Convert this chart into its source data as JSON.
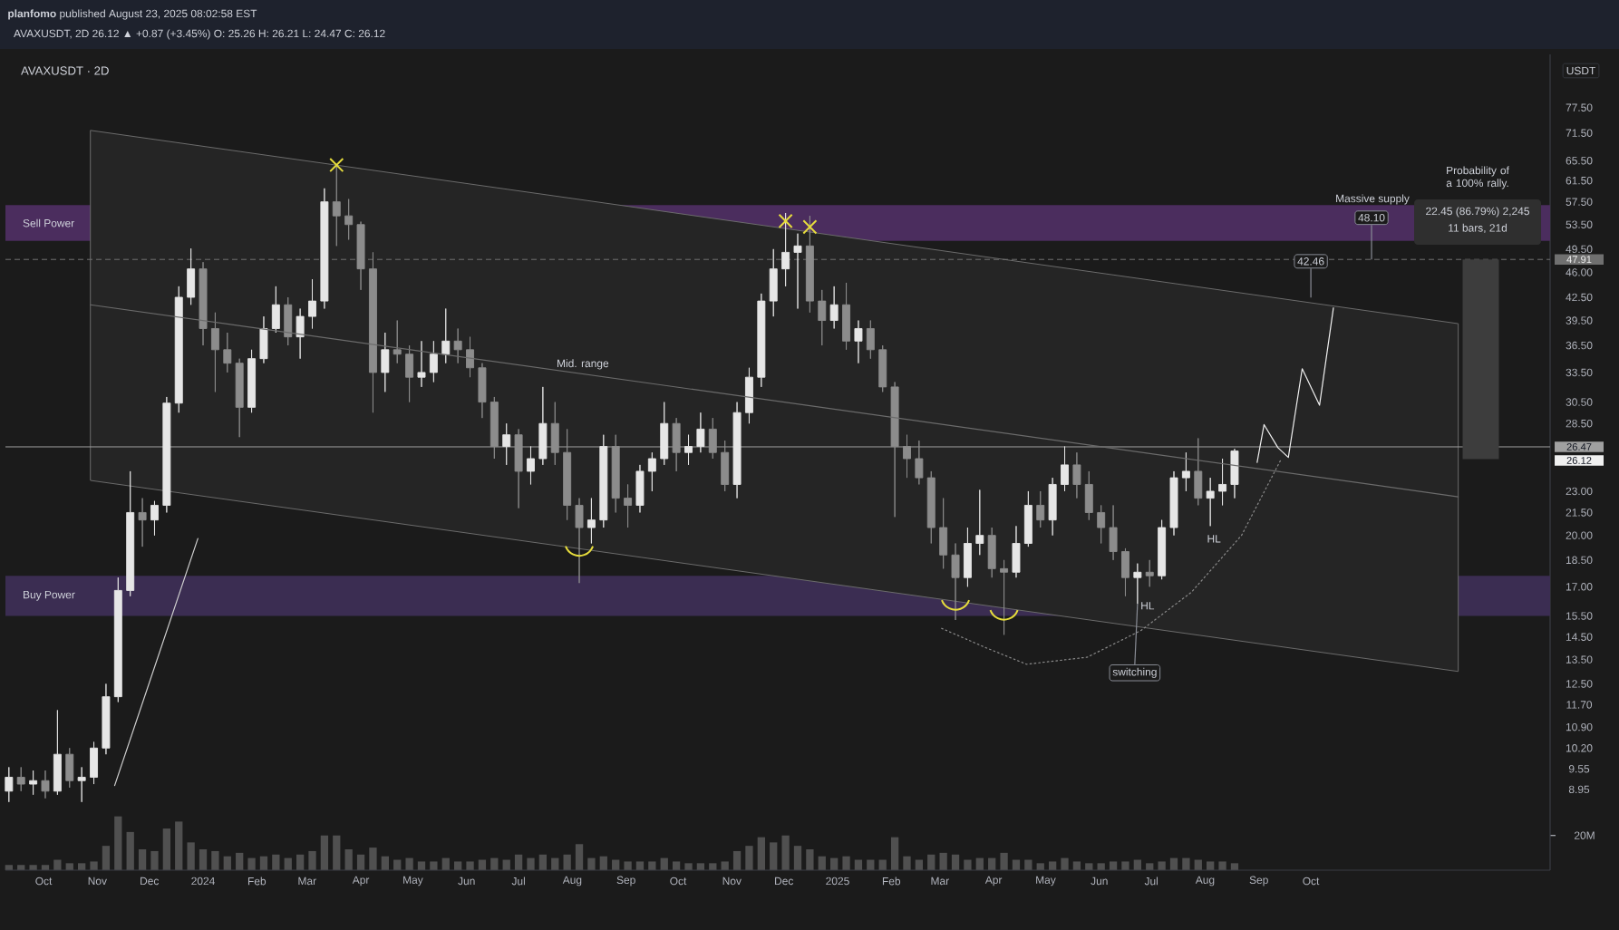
{
  "chart_data": {
    "type": "candlestick",
    "title": "AVAXUSDT · 2D",
    "subtitle": "AVAXUSDT, 2D 26.12 ▲ +0.87 (+3.45%) O: 25.26 H: 26.21 L: 24.47 C: 26.12",
    "ylabel": "USDT",
    "x": [
      "2023-09-11",
      "2023-09-18",
      "2023-09-25",
      "2023-10-02",
      "2023-10-09",
      "2023-10-16",
      "2023-10-23",
      "2023-10-30",
      "2023-11-06",
      "2023-11-13",
      "2023-11-20",
      "2023-11-27",
      "2023-12-04",
      "2023-12-11",
      "2023-12-18",
      "2023-12-25",
      "2024-01-01",
      "2024-01-08",
      "2024-01-15",
      "2024-01-22",
      "2024-01-29",
      "2024-02-05",
      "2024-02-12",
      "2024-02-19",
      "2024-02-26",
      "2024-03-04",
      "2024-03-11",
      "2024-03-18",
      "2024-03-25",
      "2024-04-01",
      "2024-04-08",
      "2024-04-15",
      "2024-04-22",
      "2024-04-29",
      "2024-05-06",
      "2024-05-13",
      "2024-05-20",
      "2024-05-27",
      "2024-06-03",
      "2024-06-10",
      "2024-06-17",
      "2024-06-24",
      "2024-07-01",
      "2024-07-08",
      "2024-07-15",
      "2024-07-22",
      "2024-07-29",
      "2024-08-05",
      "2024-08-12",
      "2024-08-19",
      "2024-08-26",
      "2024-09-02",
      "2024-09-09",
      "2024-09-16",
      "2024-09-23",
      "2024-09-30",
      "2024-10-07",
      "2024-10-14",
      "2024-10-21",
      "2024-10-28",
      "2024-11-04",
      "2024-11-11",
      "2024-11-18",
      "2024-11-25",
      "2024-12-02",
      "2024-12-09",
      "2024-12-16",
      "2024-12-23",
      "2024-12-30",
      "2025-01-06",
      "2025-01-13",
      "2025-01-20",
      "2025-01-27",
      "2025-02-03",
      "2025-02-10",
      "2025-02-17",
      "2025-02-24",
      "2025-03-03",
      "2025-03-10",
      "2025-03-17",
      "2025-03-24",
      "2025-03-31",
      "2025-04-07",
      "2025-04-14",
      "2025-04-21",
      "2025-04-28",
      "2025-05-05",
      "2025-05-12",
      "2025-05-19",
      "2025-05-26",
      "2025-06-02",
      "2025-06-09",
      "2025-06-16",
      "2025-06-23",
      "2025-06-30",
      "2025-07-07",
      "2025-07-14",
      "2025-07-21",
      "2025-07-28",
      "2025-08-04",
      "2025-08-11",
      "2025-08-18"
    ],
    "ohlc": [
      [
        8.9,
        9.6,
        8.6,
        9.3
      ],
      [
        9.3,
        9.6,
        8.9,
        9.1
      ],
      [
        9.1,
        9.5,
        8.8,
        9.2
      ],
      [
        9.2,
        9.5,
        8.7,
        8.9
      ],
      [
        8.9,
        11.5,
        8.8,
        10.0
      ],
      [
        10.0,
        10.2,
        9.0,
        9.2
      ],
      [
        9.2,
        9.6,
        8.6,
        9.3
      ],
      [
        9.3,
        10.4,
        9.1,
        10.2
      ],
      [
        10.2,
        12.5,
        10.0,
        12.0
      ],
      [
        12.0,
        17.5,
        11.8,
        16.8
      ],
      [
        16.8,
        24.5,
        16.5,
        21.5
      ],
      [
        21.5,
        22.5,
        19.3,
        21.0
      ],
      [
        21.0,
        22.3,
        20.0,
        22.0
      ],
      [
        22.0,
        31.0,
        21.5,
        30.4
      ],
      [
        30.4,
        44.0,
        29.5,
        42.5
      ],
      [
        42.5,
        49.6,
        41.5,
        46.5
      ],
      [
        46.5,
        47.5,
        36.5,
        38.5
      ],
      [
        38.5,
        40.5,
        31.5,
        36.0
      ],
      [
        36.0,
        38.0,
        33.5,
        34.5
      ],
      [
        34.5,
        35.0,
        27.3,
        30.0
      ],
      [
        30.0,
        36.0,
        29.5,
        35.0
      ],
      [
        35.0,
        40.0,
        34.5,
        38.5
      ],
      [
        38.5,
        44.0,
        38.0,
        41.5
      ],
      [
        41.5,
        42.5,
        36.5,
        37.5
      ],
      [
        37.5,
        41.0,
        35.0,
        40.0
      ],
      [
        40.0,
        45.0,
        38.5,
        42.0
      ],
      [
        42.0,
        60.0,
        41.0,
        57.5
      ],
      [
        57.5,
        64.5,
        50.0,
        55.0
      ],
      [
        55.0,
        58.0,
        51.0,
        53.5
      ],
      [
        53.5,
        54.0,
        43.5,
        46.5
      ],
      [
        46.5,
        49.0,
        29.5,
        33.5
      ],
      [
        33.5,
        38.0,
        31.5,
        36.0
      ],
      [
        36.0,
        39.5,
        34.5,
        35.5
      ],
      [
        35.5,
        36.5,
        30.5,
        33.0
      ],
      [
        33.0,
        37.0,
        32.0,
        33.5
      ],
      [
        33.5,
        37.0,
        32.5,
        35.5
      ],
      [
        35.5,
        41.0,
        34.5,
        37.0
      ],
      [
        37.0,
        38.5,
        34.5,
        36.0
      ],
      [
        36.0,
        37.5,
        33.0,
        34.0
      ],
      [
        34.0,
        34.5,
        29.0,
        30.5
      ],
      [
        30.5,
        31.0,
        25.5,
        26.5
      ],
      [
        26.5,
        28.5,
        25.0,
        27.5
      ],
      [
        27.5,
        28.0,
        21.8,
        24.5
      ],
      [
        24.5,
        26.5,
        23.5,
        25.5
      ],
      [
        25.5,
        32.0,
        25.0,
        28.5
      ],
      [
        28.5,
        30.5,
        25.0,
        26.0
      ],
      [
        26.0,
        28.0,
        21.0,
        22.0
      ],
      [
        22.0,
        22.5,
        17.2,
        20.5
      ],
      [
        20.5,
        22.5,
        19.5,
        21.0
      ],
      [
        21.0,
        27.5,
        20.5,
        26.5
      ],
      [
        26.5,
        27.5,
        21.5,
        22.5
      ],
      [
        22.5,
        23.5,
        20.5,
        22.0
      ],
      [
        22.0,
        25.0,
        21.5,
        24.5
      ],
      [
        24.5,
        26.0,
        23.0,
        25.5
      ],
      [
        25.5,
        30.5,
        25.0,
        28.5
      ],
      [
        28.5,
        29.0,
        24.5,
        26.0
      ],
      [
        26.0,
        27.5,
        25.0,
        26.5
      ],
      [
        26.5,
        29.5,
        26.0,
        28.0
      ],
      [
        28.0,
        29.0,
        25.5,
        26.0
      ],
      [
        26.0,
        27.0,
        23.0,
        23.5
      ],
      [
        23.5,
        30.5,
        22.5,
        29.5
      ],
      [
        29.5,
        34.0,
        28.5,
        33.0
      ],
      [
        33.0,
        43.0,
        32.0,
        42.0
      ],
      [
        42.0,
        49.5,
        40.0,
        46.5
      ],
      [
        46.5,
        55.5,
        44.0,
        49.0
      ],
      [
        49.0,
        52.0,
        41.0,
        50.0
      ],
      [
        50.0,
        55.0,
        40.5,
        42.0
      ],
      [
        42.0,
        43.5,
        36.5,
        39.5
      ],
      [
        39.5,
        44.0,
        38.5,
        41.5
      ],
      [
        41.5,
        44.5,
        36.0,
        37.0
      ],
      [
        37.0,
        39.5,
        34.5,
        38.5
      ],
      [
        38.5,
        39.5,
        35.0,
        36.0
      ],
      [
        36.0,
        36.5,
        31.5,
        32.0
      ],
      [
        32.0,
        32.5,
        21.2,
        26.5
      ],
      [
        26.5,
        27.5,
        24.0,
        25.5
      ],
      [
        25.5,
        27.0,
        23.5,
        24.0
      ],
      [
        24.0,
        24.5,
        19.5,
        20.5
      ],
      [
        20.5,
        22.5,
        18.0,
        18.8
      ],
      [
        18.8,
        19.5,
        15.3,
        17.5
      ],
      [
        17.5,
        20.5,
        17.0,
        19.5
      ],
      [
        19.5,
        23.1,
        18.8,
        20.0
      ],
      [
        20.0,
        20.5,
        17.5,
        18.0
      ],
      [
        18.0,
        18.5,
        14.6,
        17.8
      ],
      [
        17.8,
        20.6,
        17.5,
        19.5
      ],
      [
        19.5,
        23.0,
        19.3,
        22.0
      ],
      [
        22.0,
        23.0,
        20.5,
        21.0
      ],
      [
        21.0,
        24.0,
        20.0,
        23.5
      ],
      [
        23.5,
        26.5,
        23.0,
        25.0
      ],
      [
        25.0,
        26.0,
        22.5,
        23.5
      ],
      [
        23.5,
        24.5,
        21.0,
        21.5
      ],
      [
        21.5,
        22.0,
        19.5,
        20.5
      ],
      [
        20.5,
        22.0,
        18.5,
        19.0
      ],
      [
        19.0,
        19.2,
        16.5,
        17.5
      ],
      [
        17.5,
        18.3,
        16.1,
        17.8
      ],
      [
        17.8,
        18.5,
        17.0,
        17.6
      ],
      [
        17.6,
        21.0,
        17.4,
        20.5
      ],
      [
        20.5,
        24.5,
        20.0,
        24.0
      ],
      [
        24.0,
        26.0,
        23.0,
        24.5
      ],
      [
        24.5,
        27.2,
        22.0,
        22.5
      ],
      [
        22.5,
        24.0,
        20.6,
        23.0
      ],
      [
        23.0,
        25.5,
        22.0,
        23.5
      ],
      [
        23.5,
        26.3,
        22.5,
        26.12
      ]
    ],
    "colors": [
      "#e6e6e6",
      "#8c8c8c",
      "#e6e6e6",
      "#8c8c8c",
      "#e6e6e6",
      "#8c8c8c",
      "#e6e6e6",
      "#e6e6e6",
      "#e6e6e6",
      "#e6e6e6",
      "#e6e6e6",
      "#8c8c8c",
      "#e6e6e6",
      "#e6e6e6",
      "#e6e6e6",
      "#e6e6e6",
      "#8c8c8c",
      "#8c8c8c",
      "#8c8c8c",
      "#8c8c8c",
      "#e6e6e6",
      "#e6e6e6",
      "#e6e6e6",
      "#8c8c8c",
      "#e6e6e6",
      "#e6e6e6",
      "#e6e6e6",
      "#8c8c8c",
      "#8c8c8c",
      "#8c8c8c",
      "#8c8c8c",
      "#e6e6e6",
      "#8c8c8c",
      "#8c8c8c",
      "#e6e6e6",
      "#e6e6e6",
      "#e6e6e6",
      "#8c8c8c",
      "#8c8c8c",
      "#8c8c8c",
      "#8c8c8c",
      "#e6e6e6",
      "#8c8c8c",
      "#e6e6e6",
      "#e6e6e6",
      "#8c8c8c",
      "#8c8c8c",
      "#8c8c8c",
      "#e6e6e6",
      "#e6e6e6",
      "#8c8c8c",
      "#8c8c8c",
      "#e6e6e6",
      "#e6e6e6",
      "#e6e6e6",
      "#8c8c8c",
      "#e6e6e6",
      "#e6e6e6",
      "#8c8c8c",
      "#8c8c8c",
      "#e6e6e6",
      "#e6e6e6",
      "#e6e6e6",
      "#e6e6e6",
      "#e6e6e6",
      "#e6e6e6",
      "#8c8c8c",
      "#8c8c8c",
      "#e6e6e6",
      "#8c8c8c",
      "#e6e6e6",
      "#8c8c8c",
      "#8c8c8c",
      "#8c8c8c",
      "#8c8c8c",
      "#8c8c8c",
      "#8c8c8c",
      "#8c8c8c",
      "#8c8c8c",
      "#e6e6e6",
      "#e6e6e6",
      "#8c8c8c",
      "#8c8c8c",
      "#e6e6e6",
      "#e6e6e6",
      "#8c8c8c",
      "#e6e6e6",
      "#e6e6e6",
      "#8c8c8c",
      "#8c8c8c",
      "#8c8c8c",
      "#8c8c8c",
      "#8c8c8c",
      "#e6e6e6",
      "#8c8c8c",
      "#e6e6e6",
      "#e6e6e6",
      "#e6e6e6",
      "#8c8c8c",
      "#e6e6e6",
      "#e6e6e6",
      "#e6e6e6"
    ],
    "xlim": [
      "2023-09-09",
      "2026-02-16"
    ],
    "xticks": [
      {
        "value": "2023-10-01",
        "label": "Oct"
      },
      {
        "value": "2023-11-01",
        "label": "Nov"
      },
      {
        "value": "2023-12-01",
        "label": "Dec"
      },
      {
        "value": "2024-01-01",
        "label": "2024"
      },
      {
        "value": "2024-02-01",
        "label": "Feb"
      },
      {
        "value": "2024-03-01",
        "label": "Mar"
      },
      {
        "value": "2024-04-01",
        "label": "Apr"
      },
      {
        "value": "2024-05-01",
        "label": "May"
      },
      {
        "value": "2024-06-01",
        "label": "Jun"
      },
      {
        "value": "2024-07-01",
        "label": "Jul"
      },
      {
        "value": "2024-08-01",
        "label": "Aug"
      },
      {
        "value": "2024-09-01",
        "label": "Sep"
      },
      {
        "value": "2024-10-01",
        "label": "Oct"
      },
      {
        "value": "2024-11-01",
        "label": "Nov"
      },
      {
        "value": "2024-12-01",
        "label": "Dec"
      },
      {
        "value": "2025-01-01",
        "label": "2025"
      },
      {
        "value": "2025-02-01",
        "label": "Feb"
      },
      {
        "value": "2025-03-01",
        "label": "Mar"
      },
      {
        "value": "2025-04-01",
        "label": "Apr"
      },
      {
        "value": "2025-05-01",
        "label": "May"
      },
      {
        "value": "2025-06-01",
        "label": "Jun"
      },
      {
        "value": "2025-07-01",
        "label": "Jul"
      },
      {
        "value": "2025-08-01",
        "label": "Aug"
      },
      {
        "value": "2025-09-01",
        "label": "Sep"
      },
      {
        "value": "2025-10-01",
        "label": "Oct"
      }
    ],
    "ylim": [
      6.93,
      91.7
    ],
    "log": true,
    "yticks": [
      {
        "value": 77.5,
        "label": "77.50"
      },
      {
        "value": 71.5,
        "label": "71.50"
      },
      {
        "value": 65.5,
        "label": "65.50"
      },
      {
        "value": 61.5,
        "label": "61.50"
      },
      {
        "value": 57.5,
        "label": "57.50"
      },
      {
        "value": 53.5,
        "label": "53.50"
      },
      {
        "value": 49.5,
        "label": "49.50"
      },
      {
        "value": 46,
        "label": "46.00"
      },
      {
        "value": 42.5,
        "label": "42.50"
      },
      {
        "value": 39.5,
        "label": "39.50"
      },
      {
        "value": 36.5,
        "label": "36.50"
      },
      {
        "value": 33.5,
        "label": "33.50"
      },
      {
        "value": 30.5,
        "label": "30.50"
      },
      {
        "value": 28.5,
        "label": "28.50"
      },
      {
        "value": 23,
        "label": "23.00"
      },
      {
        "value": 21.5,
        "label": "21.50"
      },
      {
        "value": 20,
        "label": "20.00"
      },
      {
        "value": 18.5,
        "label": "18.50"
      },
      {
        "value": 17,
        "label": "17.00"
      },
      {
        "value": 15.5,
        "label": "15.50"
      },
      {
        "value": 14.5,
        "label": "14.50"
      },
      {
        "value": 13.5,
        "label": "13.50"
      },
      {
        "value": 12.5,
        "label": "12.50"
      },
      {
        "value": 11.7,
        "label": "11.70"
      },
      {
        "value": 10.9,
        "label": "10.90"
      },
      {
        "value": 10.2,
        "label": "10.20"
      },
      {
        "value": 9.55,
        "label": "9.55"
      },
      {
        "value": 8.95,
        "label": "8.95"
      }
    ],
    "y2lim": [
      0,
      470000000
    ],
    "y2ticks": [
      {
        "value": 20000000,
        "label": "20M"
      }
    ],
    "series": [
      {
        "type": "bar",
        "axis": "y2",
        "color": "#505050",
        "values": [
          3000000,
          3000000,
          3000000,
          3000000,
          6000000,
          4000000,
          4000000,
          5000000,
          14000000,
          31000000,
          22000000,
          12000000,
          11000000,
          24000000,
          28000000,
          16000000,
          12000000,
          11000000,
          8000000,
          10000000,
          7000000,
          8000000,
          9000000,
          7000000,
          9000000,
          11000000,
          20000000,
          20000000,
          12000000,
          9000000,
          13000000,
          8000000,
          6000000,
          7000000,
          5000000,
          5000000,
          7000000,
          5000000,
          5000000,
          6000000,
          7000000,
          6000000,
          9000000,
          7000000,
          9000000,
          7000000,
          9000000,
          15000000,
          7000000,
          8000000,
          6000000,
          5000000,
          5000000,
          5000000,
          7000000,
          5000000,
          4000000,
          4000000,
          4000000,
          5000000,
          11000000,
          14000000,
          19000000,
          16000000,
          20000000,
          14000000,
          12000000,
          8000000,
          7000000,
          8000000,
          6000000,
          6000000,
          6000000,
          19000000,
          8000000,
          6000000,
          9000000,
          10000000,
          9000000,
          6000000,
          7000000,
          7000000,
          10000000,
          6000000,
          6000000,
          4000000,
          5000000,
          7000000,
          5000000,
          4000000,
          4000000,
          5000000,
          5000000,
          6000000,
          4000000,
          5000000,
          7000000,
          7000000,
          6000000,
          5000000,
          5000000,
          4000000
        ]
      },
      {
        "type": "line",
        "color": "#6b6b6b",
        "x": [
          "2023-10-28",
          "2025-12-25"
        ],
        "values": [
          41.5,
          22.6
        ],
        "lower": [
          23.8,
          13.0
        ],
        "upper": [
          72.1,
          39.1
        ]
      },
      {
        "type": "line",
        "color": "#f0f0f0",
        "x": [
          "2025-08-31",
          "2025-09-04",
          "2025-09-12",
          "2025-09-18",
          "2025-09-26",
          "2025-10-06",
          "2025-10-14"
        ],
        "values": [
          25.2,
          28.4,
          26.4,
          25.6,
          33.9,
          30.2,
          41.1
        ]
      },
      {
        "type": "line",
        "line_style": "dotted",
        "color": "#8a8a8a",
        "x": [
          "2025-03-02",
          "2025-03-28",
          "2025-04-20",
          "2025-05-25",
          "2025-06-25",
          "2025-07-24",
          "2025-08-22",
          "2025-09-14"
        ],
        "values": [
          14.9,
          14.0,
          13.3,
          13.6,
          14.8,
          16.7,
          20.0,
          25.5
        ]
      },
      {
        "type": "line",
        "color": "#d0d0d0",
        "x": [
          "2023-11-11",
          "2023-12-29"
        ],
        "values": [
          9.06,
          19.8
        ]
      },
      {
        "type": "scatter",
        "marker": "cross",
        "color": "#e6dc3c",
        "x": [
          "2024-03-18",
          "2024-12-02",
          "2024-12-16"
        ],
        "values": [
          64.6,
          54.1,
          53.1
        ]
      },
      {
        "type": "scatter",
        "color": "#e6dc3c",
        "x": [
          "2024-08-05",
          "2025-03-10",
          "2025-04-07"
        ],
        "values": [
          19.1,
          16.1,
          15.6
        ]
      },
      {
        "type": "bar",
        "color": "#3d3d3d",
        "x": [
          "2026-01-07"
        ],
        "base": [
          25.46
        ],
        "values": [
          22.45
        ]
      }
    ],
    "bands": [
      {
        "axis": "y",
        "from": 50.8,
        "to": 56.9,
        "label": "Sell Power",
        "color": "#4b2d5e"
      },
      {
        "axis": "y",
        "from": 15.5,
        "to": 17.6,
        "label": "Buy Power",
        "color": "#3b2d52"
      }
    ],
    "ref_lines": [
      {
        "axis": "y",
        "value": 47.91,
        "label": "47.91",
        "line_style": "dashed",
        "color": "#707070"
      },
      {
        "axis": "y",
        "value": 26.47,
        "label": "26.47",
        "color": "#a0a0a0"
      }
    ],
    "annotations": [
      "**planfomo** published August 23, 2025 08:02:58 EST",
      {
        "text": "Mid. range",
        "x": "2024-08-07",
        "y": 33.4
      },
      {
        "text": "HL",
        "x": "2025-06-23",
        "y": 16.1
      },
      {
        "text": "HL",
        "x": "2025-08-04",
        "y": 20.6
      },
      {
        "text": "switching",
        "x": "2025-06-23",
        "y": 16.1
      },
      {
        "text": "42.46",
        "x": "2025-10-01",
        "y": 42.46
      },
      "Massive supply",
      {
        "text": "48.10",
        "x": "2025-11-05",
        "y": 47.91
      },
      "Probability of a 100% rally.",
      "22.45 (86.79%) 2,245",
      "11 bars, 21d",
      "26.12"
    ]
  }
}
